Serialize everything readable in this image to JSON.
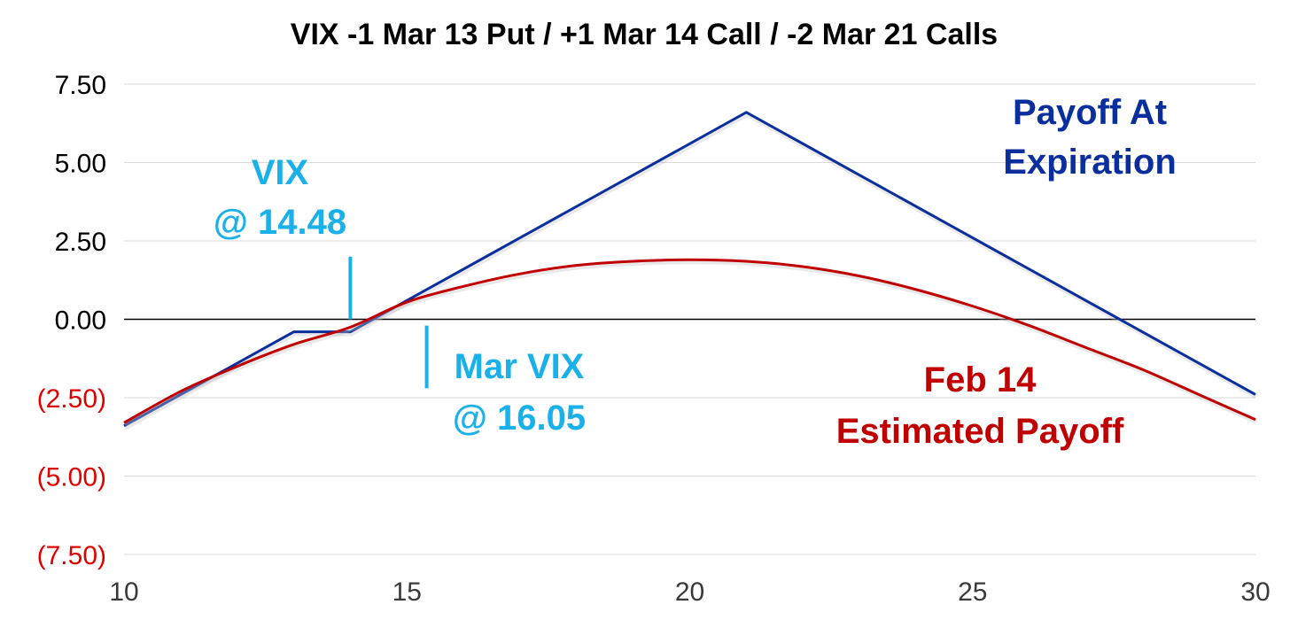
{
  "chart_data": {
    "type": "line",
    "title": "VIX -1 Mar 13 Put / +1 Mar 14 Call / -2 Mar 21 Calls",
    "xlabel": "",
    "ylabel": "",
    "xlim": [
      10,
      30
    ],
    "ylim": [
      -7.5,
      7.5
    ],
    "x_ticks": [
      {
        "value": 10,
        "label": "10"
      },
      {
        "value": 15,
        "label": "15"
      },
      {
        "value": 20,
        "label": "20"
      },
      {
        "value": 25,
        "label": "25"
      },
      {
        "value": 30,
        "label": "30"
      }
    ],
    "y_ticks": [
      {
        "value": 7.5,
        "label": "7.50"
      },
      {
        "value": 5.0,
        "label": "5.00"
      },
      {
        "value": 2.5,
        "label": "2.50"
      },
      {
        "value": 0.0,
        "label": "0.00"
      },
      {
        "value": -2.5,
        "label": "(2.50)"
      },
      {
        "value": -5.0,
        "label": "(5.00)"
      },
      {
        "value": -7.5,
        "label": "(7.50)"
      }
    ],
    "grid": "horizontal",
    "series": [
      {
        "name": "Payoff At Expiration",
        "color": "#0a2f9c",
        "x": [
          10,
          13,
          14,
          21,
          30
        ],
        "y": [
          -3.4,
          -0.4,
          -0.4,
          6.6,
          -2.4
        ]
      },
      {
        "name": "Feb 14 Estimated Payoff",
        "color": "#c00000",
        "x": [
          10,
          11,
          12,
          13,
          14,
          15,
          16,
          17,
          18,
          19,
          20,
          21,
          22,
          23,
          24,
          25,
          26,
          27,
          28,
          29,
          30
        ],
        "y": [
          -3.3,
          -2.3,
          -1.5,
          -0.8,
          -0.25,
          0.55,
          1.05,
          1.45,
          1.72,
          1.85,
          1.9,
          1.85,
          1.68,
          1.38,
          0.95,
          0.42,
          -0.2,
          -0.9,
          -1.6,
          -2.4,
          -3.2
        ]
      }
    ],
    "annotations": [
      {
        "line1": "VIX",
        "line2": "@ 14.48",
        "color": "#1ab0e8",
        "marker": {
          "x": 14.0,
          "y_from": 2.0,
          "y_to": 0.0
        }
      },
      {
        "line1": "Mar VIX",
        "line2": "@ 16.05",
        "color": "#1ab0e8",
        "marker": {
          "x": 15.35,
          "y_from": -0.2,
          "y_to": -2.2
        }
      }
    ],
    "negative_tick_color": "#e00000",
    "positive_tick_color": "#000000"
  }
}
